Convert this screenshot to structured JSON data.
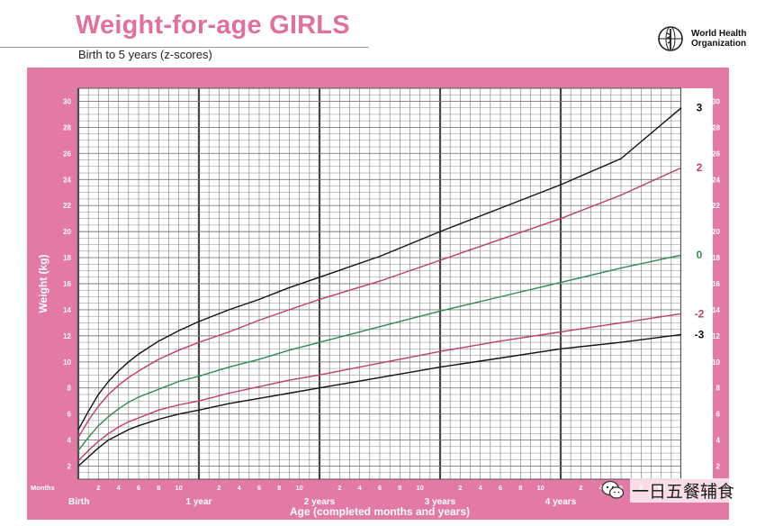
{
  "header": {
    "title": "Weight-for-age GIRLS",
    "subtitle": "Birth to 5 years (z-scores)"
  },
  "logo": {
    "line1": "World Health",
    "line2": "Organization",
    "icon": "who-emblem-icon"
  },
  "watermark": {
    "text": "一日五餐辅食",
    "icon": "wechat-icon"
  },
  "colors": {
    "frame": "#e37aa6",
    "grid": "#7a7a7a",
    "z_black": "#111111",
    "z_red": "#c23b6a",
    "z_green": "#2e8a57"
  },
  "chart_data": {
    "type": "line",
    "ylabel": "Weight (kg)",
    "xlabel": "Age (completed months and years)",
    "months_label": "Months",
    "xlim": [
      0,
      60
    ],
    "ylim": [
      1,
      31
    ],
    "y_ticks": [
      2,
      4,
      6,
      8,
      10,
      12,
      14,
      16,
      18,
      20,
      22,
      24,
      26,
      28,
      30
    ],
    "x_year_labels": [
      {
        "month": 0,
        "label": "Birth"
      },
      {
        "month": 12,
        "label": "1 year"
      },
      {
        "month": 24,
        "label": "2 years"
      },
      {
        "month": 36,
        "label": "3 years"
      },
      {
        "month": 48,
        "label": "4 years"
      }
    ],
    "x_month_ticks": [
      "2",
      "4",
      "6",
      "8",
      "10",
      "2",
      "4",
      "6",
      "8",
      "10",
      "2",
      "4",
      "6",
      "8",
      "10",
      "2",
      "4",
      "6",
      "8",
      "10",
      "2",
      "4",
      "6",
      "8",
      "10"
    ],
    "grid": true,
    "x_months": [
      0,
      1,
      2,
      3,
      4,
      5,
      6,
      8,
      10,
      12,
      15,
      18,
      21,
      24,
      30,
      36,
      42,
      48,
      54,
      60
    ],
    "series": [
      {
        "name": "3",
        "color": "#111111",
        "values": [
          4.8,
          6.2,
          7.5,
          8.5,
          9.3,
          10.0,
          10.6,
          11.6,
          12.4,
          13.1,
          14.0,
          14.8,
          15.7,
          16.5,
          18.1,
          20.0,
          21.8,
          23.6,
          25.6,
          29.5
        ]
      },
      {
        "name": "2",
        "color": "#c23b6a",
        "values": [
          4.2,
          5.5,
          6.6,
          7.5,
          8.2,
          8.8,
          9.3,
          10.2,
          10.9,
          11.5,
          12.3,
          13.2,
          14.0,
          14.8,
          16.2,
          17.8,
          19.4,
          21.0,
          22.8,
          24.9
        ]
      },
      {
        "name": "0",
        "color": "#2e8a57",
        "values": [
          3.2,
          4.2,
          5.1,
          5.8,
          6.4,
          6.9,
          7.3,
          7.9,
          8.5,
          8.9,
          9.6,
          10.2,
          10.9,
          11.5,
          12.7,
          13.9,
          15.0,
          16.1,
          17.2,
          18.2
        ]
      },
      {
        "name": "-2",
        "color": "#c23b6a",
        "values": [
          2.4,
          3.2,
          3.9,
          4.5,
          5.0,
          5.4,
          5.7,
          6.3,
          6.7,
          7.0,
          7.6,
          8.1,
          8.6,
          9.0,
          9.9,
          10.8,
          11.6,
          12.3,
          13.0,
          13.7
        ]
      },
      {
        "name": "-3",
        "color": "#111111",
        "values": [
          2.0,
          2.7,
          3.4,
          4.0,
          4.4,
          4.8,
          5.1,
          5.6,
          6.0,
          6.3,
          6.8,
          7.2,
          7.6,
          8.0,
          8.8,
          9.6,
          10.3,
          11.0,
          11.5,
          12.1
        ]
      }
    ]
  }
}
